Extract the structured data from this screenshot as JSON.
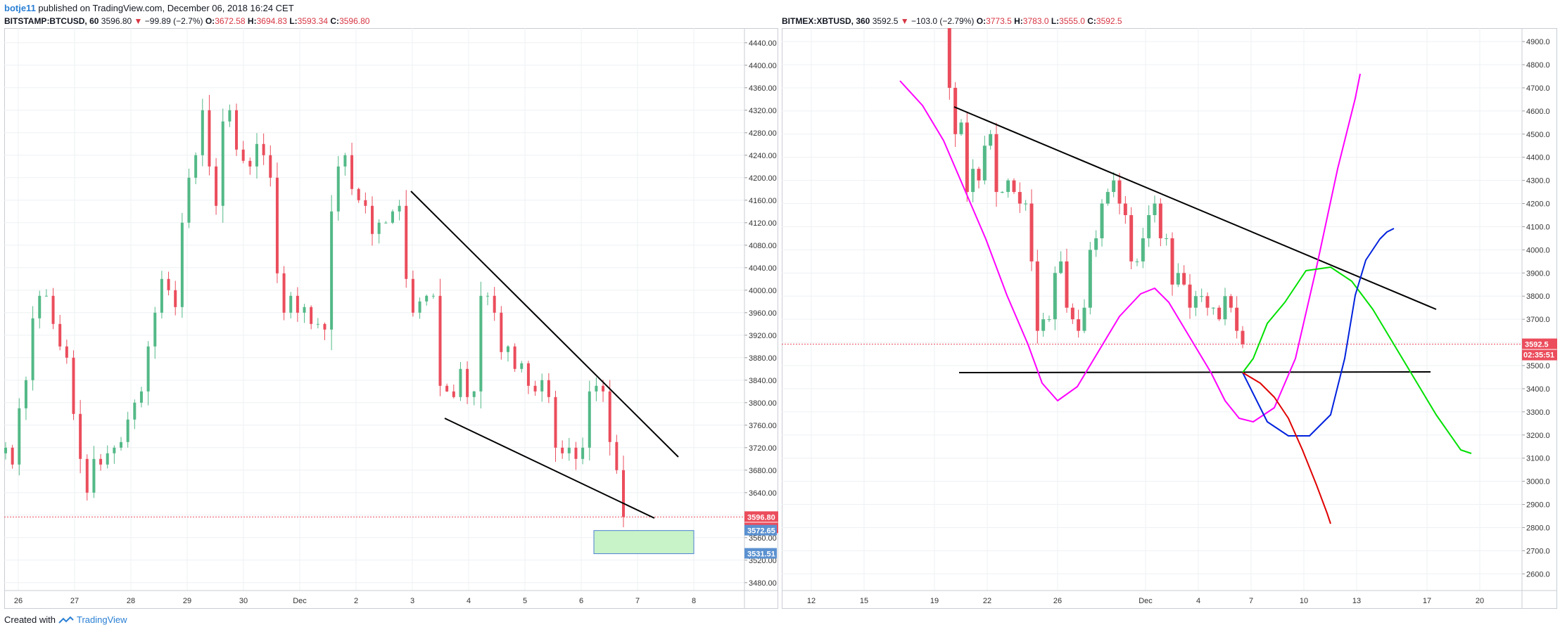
{
  "header": {
    "author": "botje11",
    "rest": " published on TradingView.com, December 06, 2018 16:24 CET"
  },
  "left": {
    "symbol": "BITSTAMP:BTCUSD, 60",
    "price": "3596.80",
    "arrow": "▼",
    "change": "−99.89 (−2.7%)",
    "o_label": "O:",
    "o": "3672.58",
    "h_label": "H:",
    "h": "3694.83",
    "l_label": "L:",
    "l": "3593.34",
    "c_label": "C:",
    "c": "3596.80"
  },
  "right": {
    "symbol": "BITMEX:XBTUSD, 360",
    "price": "3592.5",
    "arrow": "▼",
    "change": "−103.0 (−2.79%)",
    "o_label": "O:",
    "o": "3773.5",
    "h_label": "H:",
    "h": "3783.0",
    "l_label": "L:",
    "l": "3555.0",
    "c_label": "C:",
    "c": "3592.5"
  },
  "footer": {
    "created": "Created with",
    "brand": "TradingView"
  },
  "colors": {
    "up": "#53b987",
    "down": "#eb4d5c",
    "grid": "#eef0f3",
    "trend": "#000000",
    "magenta": "#ff00ff",
    "green": "#00e000",
    "blue": "#0022dd",
    "red": "#e00000",
    "price_tag": "#eb4d5c",
    "blue_tag": "#5b91d0",
    "target_box": "#c8f2c8"
  },
  "chart_data": [
    {
      "type": "candlestick",
      "title": "BITSTAMP:BTCUSD, 60",
      "x_ticks": [
        "26",
        "27",
        "28",
        "29",
        "30",
        "Dec",
        "2",
        "3",
        "4",
        "5",
        "6",
        "7",
        "8"
      ],
      "y_ticks": [
        "4440.00",
        "4400.00",
        "4360.00",
        "4320.00",
        "4280.00",
        "4240.00",
        "4200.00",
        "4160.00",
        "4120.00",
        "4080.00",
        "4040.00",
        "4000.00",
        "3960.00",
        "3920.00",
        "3880.00",
        "3840.00",
        "3800.00",
        "3760.00",
        "3720.00",
        "3680.00",
        "3640.00",
        "3600.00",
        "3560.00",
        "3520.00",
        "3480.00"
      ],
      "ylim": [
        3466,
        4466
      ],
      "xlim": [
        25.65,
        8.8
      ],
      "last_price": "3596.80",
      "countdown": "35:51",
      "blue_labels": [
        "3572.65",
        "3531.51"
      ],
      "target_zone": [
        3531.51,
        3572.65
      ],
      "closes": [
        3720,
        3690,
        3790,
        3840,
        3950,
        3990,
        3990,
        3940,
        3900,
        3880,
        3780,
        3700,
        3640,
        3700,
        3690,
        3710,
        3720,
        3730,
        3770,
        3800,
        3820,
        3900,
        3960,
        4020,
        4000,
        3970,
        4120,
        4200,
        4240,
        4320,
        4220,
        4150,
        4300,
        4320,
        4250,
        4230,
        4220,
        4260,
        4240,
        4200,
        4030,
        3960,
        3990,
        3960,
        3970,
        3940,
        3940,
        3930,
        4140,
        4220,
        4240,
        4180,
        4160,
        4150,
        4100,
        4120,
        4120,
        4140,
        4150,
        4020,
        3960,
        3980,
        3990,
        3990,
        3830,
        3820,
        3810,
        3860,
        3810,
        3820,
        3990,
        3990,
        3960,
        3890,
        3900,
        3860,
        3870,
        3830,
        3820,
        3840,
        3810,
        3720,
        3710,
        3720,
        3700,
        3720,
        3820,
        3830,
        3820,
        3730,
        3680,
        3596.8
      ]
    },
    {
      "type": "candlestick",
      "title": "BITMEX:XBTUSD, 360",
      "x_ticks": [
        "12",
        "15",
        "19",
        "22",
        "26",
        "Dec",
        "4",
        "7",
        "10",
        "13",
        "17",
        "20"
      ],
      "y_ticks": [
        "4900.0",
        "4800.0",
        "4700.0",
        "4600.0",
        "4500.0",
        "4400.0",
        "4300.0",
        "4200.0",
        "4100.0",
        "4000.0",
        "3900.0",
        "3800.0",
        "3700.0",
        "3600.0",
        "3500.0",
        "3400.0",
        "3300.0",
        "3200.0",
        "3100.0",
        "3000.0",
        "2900.0",
        "2800.0",
        "2700.0",
        "2600.0"
      ],
      "ylim": [
        2528,
        4958
      ],
      "last_price": "3592.5",
      "countdown": "02:35:51",
      "closes": [
        5000,
        4700,
        4500,
        4550,
        4250,
        4350,
        4300,
        4450,
        4500,
        4250,
        4250,
        4300,
        4250,
        4200,
        4200,
        3950,
        3650,
        3700,
        3700,
        3900,
        3950,
        3750,
        3700,
        3650,
        3750,
        4000,
        4050,
        4200,
        4250,
        4300,
        4200,
        4150,
        3950,
        3950,
        4050,
        4150,
        4200,
        4050,
        4050,
        3850,
        3900,
        3850,
        3750,
        3800,
        3800,
        3750,
        3750,
        3700,
        3800,
        3750,
        3650,
        3592.5
      ]
    }
  ]
}
